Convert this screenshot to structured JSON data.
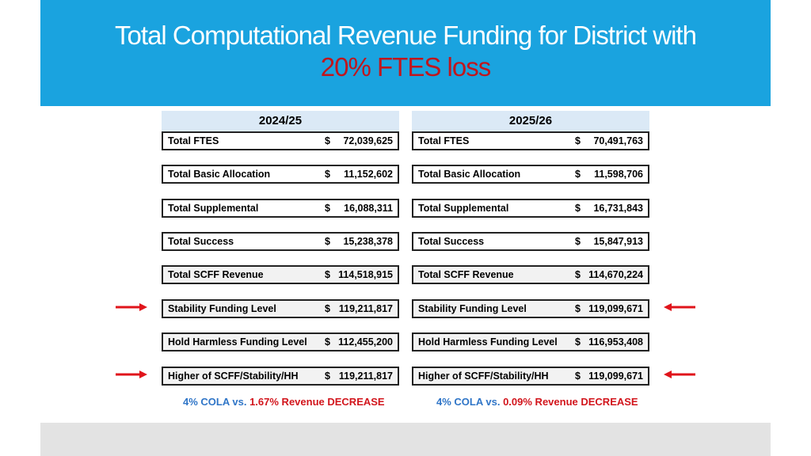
{
  "title": {
    "line1": "Total Computational Revenue Funding for District with",
    "line2": "20% FTES loss"
  },
  "columns": [
    {
      "year": "2024/25",
      "rows": [
        {
          "label": "Total FTES",
          "currency": "$",
          "value": "72,039,625"
        },
        {
          "label": "Total Basic Allocation",
          "currency": "$",
          "value": "11,152,602"
        },
        {
          "label": "Total Supplemental",
          "currency": "$",
          "value": "16,088,311"
        },
        {
          "label": "Total Success",
          "currency": "$",
          "value": "15,238,378"
        },
        {
          "label": "Total SCFF Revenue",
          "currency": "$",
          "value": "114,518,915"
        },
        {
          "label": "Stability Funding Level",
          "currency": "$",
          "value": "119,211,817"
        },
        {
          "label": "Hold Harmless Funding Level",
          "currency": "$",
          "value": "112,455,200"
        },
        {
          "label": "Higher of SCFF/Stability/HH",
          "currency": "$",
          "value": "119,211,817"
        }
      ],
      "note": {
        "cola": "4% COLA",
        "vs": "vs.",
        "change": "1.67% Revenue DECREASE"
      }
    },
    {
      "year": "2025/26",
      "rows": [
        {
          "label": "Total FTES",
          "currency": "$",
          "value": "70,491,763"
        },
        {
          "label": "Total Basic Allocation",
          "currency": "$",
          "value": "11,598,706"
        },
        {
          "label": "Total Supplemental",
          "currency": "$",
          "value": "16,731,843"
        },
        {
          "label": "Total Success",
          "currency": "$",
          "value": "15,847,913"
        },
        {
          "label": "Total SCFF Revenue",
          "currency": "$",
          "value": "114,670,224"
        },
        {
          "label": "Stability Funding Level",
          "currency": "$",
          "value": "119,099,671"
        },
        {
          "label": "Hold Harmless Funding Level",
          "currency": "$",
          "value": "116,953,408"
        },
        {
          "label": "Higher of SCFF/Stability/HH",
          "currency": "$",
          "value": "119,099,671"
        }
      ],
      "note": {
        "cola": "4% COLA",
        "vs": "vs.",
        "change": "0.09% Revenue DECREASE"
      }
    }
  ],
  "colors": {
    "banner": "#1aa3df",
    "highlight_red": "#c0161d",
    "arrow_red": "#e0141b",
    "note_blue": "#2f75c7",
    "year_header_bg": "#dbe9f6"
  },
  "arrows": [
    "arrow-right-icon",
    "arrow-left-icon"
  ]
}
